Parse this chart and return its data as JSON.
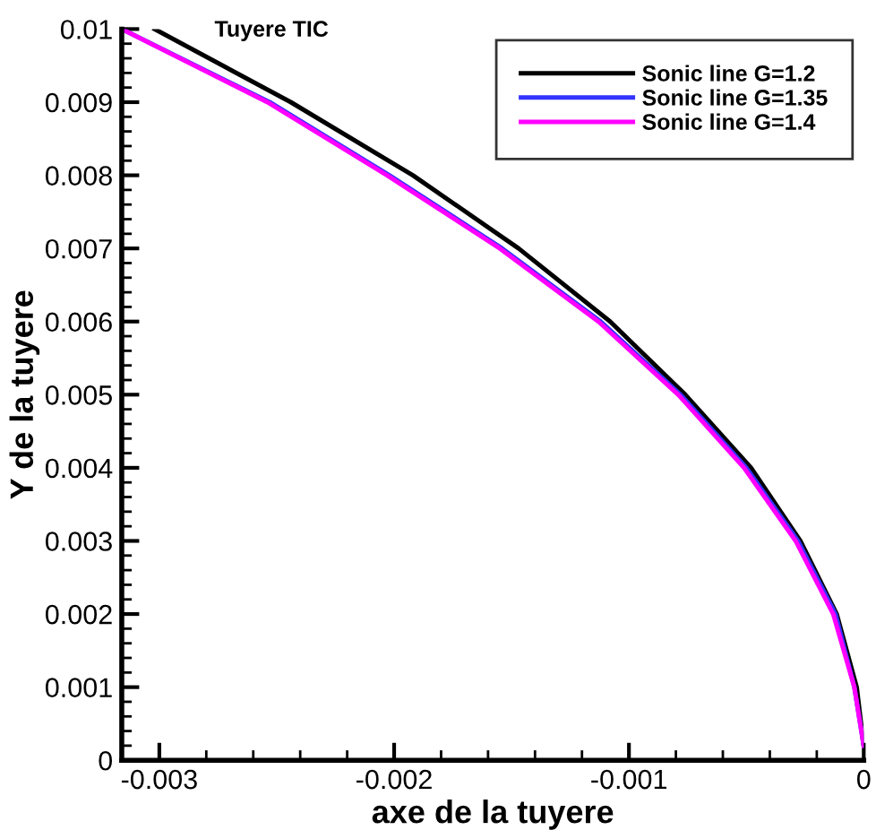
{
  "chart_data": {
    "type": "line",
    "xlabel": "axe de la tuyere",
    "ylabel": "Y de la tuyere",
    "annotations": [
      "Tuyere TIC"
    ],
    "series": [
      {
        "name": "Sonic line G=1.2",
        "color": "#000000",
        "x": [
          -0.00302,
          -0.00244,
          -0.00192,
          -0.00147,
          -0.00108,
          -0.00076,
          -0.00048,
          -0.00027,
          -0.000115,
          -3e-05,
          0
        ],
        "values": [
          0.01,
          0.009,
          0.008,
          0.007,
          0.006,
          0.005,
          0.004,
          0.003,
          0.002,
          0.001,
          0.0002
        ]
      },
      {
        "name": "Sonic line G=1.35",
        "color": "#3333ff",
        "x": [
          -0.00316,
          -0.00253,
          -0.00202,
          -0.00154,
          -0.00112,
          -0.00078,
          -0.0005,
          -0.00028,
          -0.00012,
          -4e-05,
          0
        ],
        "values": [
          0.01,
          0.009,
          0.008,
          0.007,
          0.006,
          0.005,
          0.004,
          0.003,
          0.002,
          0.001,
          0.0002
        ]
      },
      {
        "name": "Sonic line G=1.4",
        "color": "#ff00ff",
        "x": [
          -0.00316,
          -0.00254,
          -0.00203,
          -0.00155,
          -0.00113,
          -0.00079,
          -0.00051,
          -0.00029,
          -0.00013,
          -4e-05,
          0
        ],
        "values": [
          0.01,
          0.009,
          0.008,
          0.007,
          0.006,
          0.005,
          0.004,
          0.003,
          0.002,
          0.001,
          0.0002
        ]
      }
    ],
    "xlim": [
      -0.00316,
      0
    ],
    "ylim": [
      0,
      0.01
    ],
    "xticks": [
      -0.003,
      -0.002,
      -0.001,
      0
    ],
    "yticks": [
      0,
      0.001,
      0.002,
      0.003,
      0.004,
      0.005,
      0.006,
      0.007,
      0.008,
      0.009,
      0.01
    ],
    "grid": false,
    "legend": "top right",
    "marker": "none",
    "line_style": "solid"
  }
}
